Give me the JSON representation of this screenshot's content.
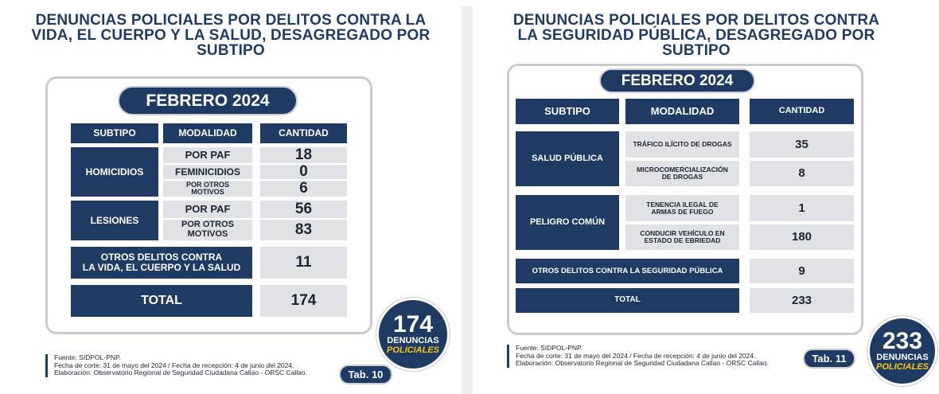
{
  "left": {
    "title_lines": [
      "DENUNCIAS POLICIALES POR DELITOS CONTRA LA",
      "VIDA, EL CUERPO Y LA SALUD, DESAGREGADO POR",
      "SUBTIPO"
    ],
    "period": "FEBRERO 2024",
    "headers": {
      "subtipo": "SUBTIPO",
      "modalidad": "MODALIDAD",
      "cantidad": "CANTIDAD"
    },
    "homicidios": {
      "label": "HOMICIDIOS",
      "rows": [
        {
          "modalidad": "POR PAF",
          "cantidad": "18"
        },
        {
          "modalidad": "FEMINICIDIOS",
          "cantidad": "0"
        },
        {
          "modalidad": "POR OTROS MOTIVOS",
          "cantidad": "6"
        }
      ]
    },
    "lesiones": {
      "label": "LESIONES",
      "rows": [
        {
          "modalidad": "POR PAF",
          "cantidad": "56"
        },
        {
          "modalidad": "POR OTROS MOTIVOS",
          "cantidad": "83"
        }
      ]
    },
    "otros": {
      "label_lines": [
        "OTROS DELITOS CONTRA",
        "LA VIDA, EL CUERPO Y LA SALUD"
      ],
      "cantidad": "11"
    },
    "total": {
      "label": "TOTAL",
      "cantidad": "174"
    },
    "badge": {
      "number": "174",
      "line1": "DENUNCIAS",
      "line2": "POLICIALES"
    },
    "source": [
      "Fuente: SIDPOL-PNP.",
      "Fecha de corte: 31 de mayo del 2024 / Fecha de recepción: 4 de junio del 2024.",
      "Elaboración: Observatorio Regional de Seguridad Ciudadana Callao - ORSC Callao."
    ],
    "tab": "Tab. 10"
  },
  "right": {
    "title_lines": [
      "DENUNCIAS POLICIALES POR DELITOS CONTRA",
      "LA SEGURIDAD PÚBLICA, DESAGREGADO POR",
      "SUBTIPO"
    ],
    "period": "FEBRERO 2024",
    "headers": {
      "subtipo": "SUBTIPO",
      "modalidad": "MODALIDAD",
      "cantidad": "CANTIDAD"
    },
    "salud_publica": {
      "label": "SALUD PÚBLICA",
      "rows": [
        {
          "modalidad": "TRÁFICO ILÍCITO DE DROGAS",
          "cantidad": "35"
        },
        {
          "modalidad": "MICROCOMERCIALIZACIÓN DE DROGAS",
          "cantidad": "8"
        }
      ]
    },
    "peligro_comun": {
      "label": "PELIGRO COMÚN",
      "rows": [
        {
          "modalidad": "TENENCIA ILEGAL DE ARMAS DE FUEGO",
          "cantidad": "1"
        },
        {
          "modalidad": "CONDUCIR VEHÍCULO EN ESTADO DE EBRIEDAD",
          "cantidad": "180"
        }
      ]
    },
    "otros": {
      "label": "OTROS DELITOS CONTRA LA SEGURIDAD PÚBLICA",
      "cantidad": "9"
    },
    "total": {
      "label": "TOTAL",
      "cantidad": "233"
    },
    "badge": {
      "number": "233",
      "line1": "DENUNCIAS",
      "line2": "POLICIALES"
    },
    "source": [
      "Fuente: SIDPOL-PNP.",
      "Fecha de corte: 31 de mayo del 2024 / Fecha de recepción: 4 de junio del 2024.",
      "Elaboración: Observatorio Regional de Seguridad Ciudadana Callao - ORSC Callao."
    ],
    "tab": "Tab. 11"
  }
}
